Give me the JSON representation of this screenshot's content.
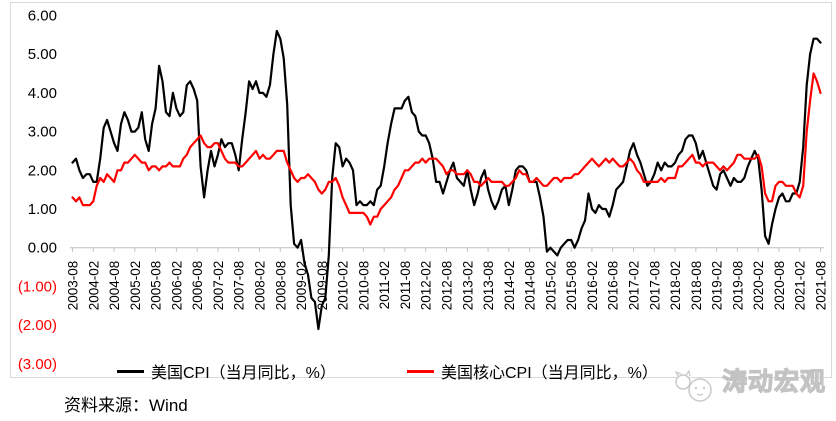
{
  "chart_data": {
    "type": "line",
    "x_start": "2003-08",
    "x_end": "2021-08",
    "x_frequency": "monthly",
    "x_tick_interval_months": 6,
    "x_tick_labels": [
      "2003-08",
      "2004-02",
      "2004-08",
      "2005-02",
      "2005-08",
      "2006-02",
      "2006-08",
      "2007-02",
      "2007-08",
      "2008-02",
      "2008-08",
      "2009-02",
      "2009-08",
      "2010-02",
      "2010-08",
      "2011-02",
      "2011-08",
      "2012-02",
      "2012-08",
      "2013-02",
      "2013-08",
      "2014-02",
      "2014-08",
      "2015-02",
      "2015-08",
      "2016-02",
      "2016-08",
      "2017-02",
      "2017-08",
      "2018-02",
      "2018-08",
      "2019-02",
      "2019-08",
      "2020-02",
      "2020-08",
      "2021-02",
      "2021-08"
    ],
    "y_ticks": [
      {
        "label": "6.00",
        "value": 6
      },
      {
        "label": "5.00",
        "value": 5
      },
      {
        "label": "4.00",
        "value": 4
      },
      {
        "label": "3.00",
        "value": 3
      },
      {
        "label": "2.00",
        "value": 2
      },
      {
        "label": "1.00",
        "value": 1
      },
      {
        "label": "0.00",
        "value": 0
      },
      {
        "label": "(1.00)",
        "value": -1
      },
      {
        "label": "(2.00)",
        "value": -2
      },
      {
        "label": "(3.00)",
        "value": -3
      }
    ],
    "ylim": [
      -3,
      6
    ],
    "grid": false,
    "legend_position": "bottom-inside",
    "axis_color": "#bfbfbf",
    "neg_tick_color": "#ff0000",
    "series": [
      {
        "name": "美国CPI（当月同比，%）",
        "color": "#000000",
        "values": [
          2.2,
          2.3,
          2.0,
          1.8,
          1.9,
          1.9,
          1.7,
          1.7,
          2.3,
          3.1,
          3.3,
          3.0,
          2.7,
          2.5,
          3.2,
          3.5,
          3.3,
          3.0,
          3.0,
          3.1,
          3.5,
          2.8,
          2.5,
          3.2,
          3.6,
          4.7,
          4.3,
          3.5,
          3.4,
          4.0,
          3.6,
          3.4,
          3.5,
          4.2,
          4.3,
          4.1,
          3.8,
          2.1,
          1.3,
          2.0,
          2.5,
          2.1,
          2.4,
          2.8,
          2.6,
          2.7,
          2.7,
          2.4,
          2.0,
          2.8,
          3.5,
          4.3,
          4.1,
          4.3,
          4.0,
          4.0,
          3.9,
          4.2,
          5.0,
          5.6,
          5.4,
          4.9,
          3.7,
          1.1,
          0.1,
          0.0,
          0.2,
          -0.4,
          -0.7,
          -1.3,
          -1.4,
          -2.1,
          -1.5,
          -1.3,
          -0.2,
          1.8,
          2.7,
          2.6,
          2.1,
          2.3,
          2.2,
          2.0,
          1.1,
          1.2,
          1.1,
          1.1,
          1.2,
          1.1,
          1.5,
          1.6,
          2.1,
          2.7,
          3.2,
          3.6,
          3.6,
          3.6,
          3.8,
          3.9,
          3.5,
          3.4,
          3.0,
          2.9,
          2.9,
          2.7,
          2.3,
          1.7,
          1.7,
          1.4,
          1.7,
          2.0,
          2.2,
          1.8,
          1.7,
          1.6,
          2.0,
          1.5,
          1.1,
          1.4,
          1.8,
          2.0,
          1.5,
          1.2,
          1.0,
          1.2,
          1.5,
          1.6,
          1.1,
          1.5,
          2.0,
          2.1,
          2.1,
          2.0,
          1.7,
          1.7,
          1.7,
          1.3,
          0.8,
          -0.1,
          0.0,
          -0.1,
          -0.2,
          0.0,
          0.1,
          0.2,
          0.2,
          0.0,
          0.2,
          0.5,
          0.7,
          1.4,
          1.0,
          0.9,
          1.1,
          1.0,
          1.0,
          0.8,
          1.1,
          1.5,
          1.6,
          1.7,
          2.1,
          2.5,
          2.7,
          2.4,
          2.2,
          1.9,
          1.6,
          1.7,
          1.9,
          2.2,
          2.0,
          2.2,
          2.1,
          2.1,
          2.2,
          2.4,
          2.5,
          2.8,
          2.9,
          2.9,
          2.7,
          2.3,
          2.5,
          2.2,
          1.9,
          1.6,
          1.5,
          1.9,
          2.0,
          1.8,
          1.6,
          1.8,
          1.7,
          1.7,
          1.8,
          2.1,
          2.3,
          2.5,
          2.3,
          1.5,
          0.3,
          0.1,
          0.6,
          1.0,
          1.3,
          1.4,
          1.2,
          1.2,
          1.4,
          1.4,
          1.7,
          2.6,
          4.2,
          5.0,
          5.4,
          5.4,
          5.3
        ]
      },
      {
        "name": "美国核心CPI（当月同比，%）",
        "color": "#ff0000",
        "values": [
          1.3,
          1.2,
          1.3,
          1.1,
          1.1,
          1.1,
          1.2,
          1.6,
          1.8,
          1.7,
          1.9,
          1.8,
          1.7,
          2.0,
          2.0,
          2.2,
          2.2,
          2.3,
          2.4,
          2.3,
          2.2,
          2.2,
          2.0,
          2.1,
          2.1,
          2.0,
          2.1,
          2.1,
          2.2,
          2.1,
          2.1,
          2.1,
          2.3,
          2.4,
          2.6,
          2.7,
          2.8,
          2.9,
          2.7,
          2.6,
          2.6,
          2.7,
          2.7,
          2.5,
          2.3,
          2.2,
          2.2,
          2.2,
          2.1,
          2.1,
          2.2,
          2.3,
          2.4,
          2.5,
          2.3,
          2.4,
          2.3,
          2.3,
          2.4,
          2.5,
          2.5,
          2.5,
          2.2,
          2.0,
          1.8,
          1.7,
          1.8,
          1.8,
          1.9,
          1.8,
          1.7,
          1.5,
          1.4,
          1.5,
          1.7,
          1.7,
          1.8,
          1.6,
          1.3,
          1.1,
          0.9,
          0.9,
          0.9,
          0.9,
          0.9,
          0.8,
          0.6,
          0.8,
          0.8,
          1.0,
          1.1,
          1.2,
          1.3,
          1.5,
          1.6,
          1.8,
          2.0,
          2.0,
          2.1,
          2.2,
          2.2,
          2.3,
          2.2,
          2.3,
          2.3,
          2.3,
          2.2,
          2.1,
          1.9,
          2.0,
          2.0,
          1.9,
          1.9,
          1.9,
          2.0,
          1.9,
          1.7,
          1.7,
          1.6,
          1.7,
          1.8,
          1.7,
          1.7,
          1.7,
          1.7,
          1.6,
          1.6,
          1.7,
          1.8,
          2.0,
          1.9,
          1.9,
          1.7,
          1.7,
          1.8,
          1.7,
          1.6,
          1.6,
          1.7,
          1.8,
          1.8,
          1.7,
          1.8,
          1.8,
          1.8,
          1.9,
          1.9,
          2.0,
          2.1,
          2.2,
          2.3,
          2.2,
          2.1,
          2.2,
          2.3,
          2.2,
          2.3,
          2.2,
          2.1,
          2.1,
          2.2,
          2.3,
          2.2,
          2.0,
          1.9,
          1.7,
          1.7,
          1.7,
          1.7,
          1.7,
          1.8,
          1.7,
          1.8,
          1.8,
          1.8,
          2.1,
          2.1,
          2.2,
          2.3,
          2.4,
          2.2,
          2.2,
          2.1,
          2.2,
          2.2,
          2.2,
          2.1,
          2.0,
          2.1,
          2.0,
          2.1,
          2.2,
          2.4,
          2.4,
          2.3,
          2.3,
          2.3,
          2.3,
          2.4,
          2.1,
          1.4,
          1.2,
          1.2,
          1.6,
          1.7,
          1.7,
          1.6,
          1.6,
          1.6,
          1.4,
          1.3,
          1.6,
          3.0,
          3.8,
          4.5,
          4.3,
          4.0
        ]
      }
    ]
  },
  "source": {
    "text": "资料来源：Wind"
  },
  "watermark": {
    "text": "涛动宏观"
  }
}
